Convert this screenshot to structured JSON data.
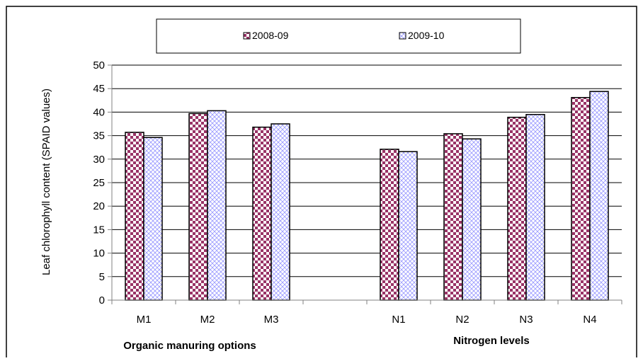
{
  "chart_data": {
    "type": "bar",
    "ylabel": "Leaf chlorophyll content (SPAID values)",
    "xlabel": "",
    "ylim": [
      0,
      50
    ],
    "yticks": [
      0,
      5,
      10,
      15,
      20,
      25,
      30,
      35,
      40,
      45,
      50
    ],
    "grid": true,
    "legend_position": "top",
    "categories": [
      "M1",
      "M2",
      "M3",
      "",
      "N1",
      "N2",
      "N3",
      "N4"
    ],
    "series": [
      {
        "name": "2008-09",
        "values": [
          35.7,
          39.7,
          36.8,
          null,
          32.1,
          35.4,
          38.9,
          43.1
        ]
      },
      {
        "name": "2009-10",
        "values": [
          34.6,
          40.3,
          37.5,
          null,
          31.6,
          34.3,
          39.5,
          44.4
        ]
      }
    ],
    "group_labels": [
      {
        "text": "Organic manuring options"
      },
      {
        "text": "Nitrogen levels"
      }
    ],
    "colors": {
      "series1_fill": "#993366",
      "series1_check": "#ffffff",
      "series2_fill": "#ffffff",
      "series2_pattern": "#9999ff",
      "grid": "#000000",
      "axis": "#808080"
    }
  }
}
